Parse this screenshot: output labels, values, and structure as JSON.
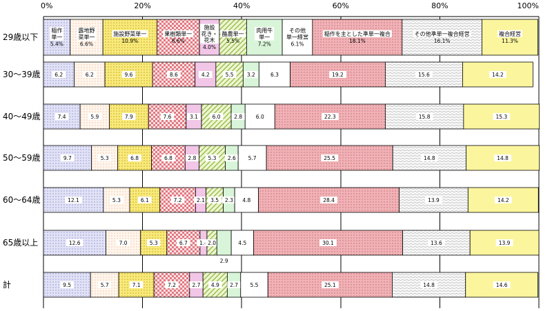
{
  "chart_data": {
    "type": "bar",
    "orientation": "horizontal",
    "stacked": true,
    "title": "",
    "xlabel": "",
    "ylabel": "",
    "xlim": [
      0,
      100
    ],
    "x_ticks": [
      "0%",
      "20%",
      "40%",
      "60%",
      "80%",
      "100%"
    ],
    "categories": [
      "29歳以下",
      "30～39歳",
      "40～49歳",
      "50～59歳",
      "60～64歳",
      "65歳以上",
      "計"
    ],
    "legend_placement": "inside-first-row",
    "series": [
      {
        "name": "稲作単一",
        "label_lines": [
          "稲作",
          "単一"
        ],
        "color": "#dcdcf4",
        "pattern": "dots-purple",
        "values": [
          5.4,
          6.2,
          7.4,
          9.7,
          12.1,
          12.6,
          9.5
        ]
      },
      {
        "name": "露地野菜単一",
        "label_lines": [
          "露地野",
          "菜単一"
        ],
        "color": "#fff4ec",
        "pattern": "dots-orange",
        "values": [
          6.6,
          6.2,
          5.9,
          5.3,
          5.3,
          7.0,
          5.7
        ]
      },
      {
        "name": "施設野菜単一",
        "label_lines": [
          "施設野菜単一"
        ],
        "color": "#f7ec9a",
        "pattern": "dots-yellow",
        "values": [
          10.9,
          9.6,
          7.9,
          6.8,
          6.1,
          5.3,
          7.1
        ]
      },
      {
        "name": "果樹類単一",
        "label_lines": [
          "果樹類単一"
        ],
        "color": "#f3c4c8",
        "pattern": "check-red",
        "values": [
          8.6,
          8.6,
          7.6,
          6.8,
          7.2,
          6.7,
          7.2
        ]
      },
      {
        "name": "施設花き・花木",
        "label_lines": [
          "施設",
          "花き・",
          "花木"
        ],
        "color": "#f2c6e6",
        "pattern": "plain-pink",
        "values": [
          4.0,
          4.2,
          3.1,
          2.8,
          2.1,
          1.4,
          2.7
        ]
      },
      {
        "name": "酪農単一",
        "label_lines": [
          "酪農単一"
        ],
        "color": "#e4f0c0",
        "pattern": "diag-green",
        "values": [
          5.5,
          5.5,
          6.0,
          5.3,
          3.5,
          2.0,
          4.9
        ]
      },
      {
        "name": "肉用牛単一",
        "label_lines": [
          "肉用牛",
          "単一"
        ],
        "color": "#d8f4d8",
        "pattern": "plain-green",
        "values": [
          7.2,
          3.2,
          2.8,
          2.6,
          2.3,
          2.9,
          2.7
        ]
      },
      {
        "name": "その他単一経営",
        "label_lines": [
          "その他",
          "単一経営"
        ],
        "color": "#ffffff",
        "pattern": "none",
        "values": [
          6.1,
          6.3,
          6.0,
          5.7,
          4.8,
          4.5,
          5.5
        ]
      },
      {
        "name": "稲作を主とした準単一複合",
        "label_lines": [
          "稲作を主とした準単一複合"
        ],
        "color": "#ecaeb2",
        "pattern": "dots-red",
        "values": [
          18.1,
          19.2,
          22.3,
          25.5,
          28.4,
          30.1,
          25.1
        ]
      },
      {
        "name": "その他準単一複合経営",
        "label_lines": [
          "その他準単一複合経営"
        ],
        "color": "#f2f2f2",
        "pattern": "wave-gray",
        "values": [
          16.1,
          15.6,
          15.8,
          14.8,
          13.9,
          13.6,
          14.8
        ]
      },
      {
        "name": "複合経営",
        "label_lines": [
          "複合経営"
        ],
        "color": "#fbf59c",
        "pattern": "plain-yellow",
        "values": [
          11.3,
          14.2,
          15.3,
          14.8,
          14.2,
          13.9,
          14.6
        ]
      }
    ],
    "value_labels": [
      [
        "5.4%",
        "6.6%",
        "10.9%",
        "8.6%",
        "4.0%",
        "5.5%",
        "7.2%",
        "6.1%",
        "18.1%",
        "16.1%",
        "11.3%"
      ],
      [
        "6.2",
        "6.2",
        "9.6",
        "8.6",
        "4.2",
        "5.5",
        "3.2",
        "6.3",
        "19.2",
        "15.6",
        "14.2"
      ],
      [
        "7.4",
        "5.9",
        "7.9",
        "7.6",
        "3.1",
        "6.0",
        "2.8",
        "6.0",
        "22.3",
        "15.8",
        "15.3"
      ],
      [
        "9.7",
        "5.3",
        "6.8",
        "6.8",
        "2.8",
        "5.3",
        "2.6",
        "5.7",
        "25.5",
        "14.8",
        "14.8"
      ],
      [
        "12.1",
        "5.3",
        "6.1",
        "7.2",
        "2.1",
        "3.5",
        "2.3",
        "4.8",
        "28.4",
        "13.9",
        "14.2"
      ],
      [
        "12.6",
        "7.0",
        "5.3",
        "6.7",
        "1.4",
        "2.0",
        "2.9",
        "4.5",
        "30.1",
        "13.6",
        "13.9"
      ],
      [
        "9.5",
        "5.7",
        "7.1",
        "7.2",
        "2.7",
        "4.9",
        "2.7",
        "5.5",
        "25.1",
        "14.8",
        "14.6"
      ]
    ]
  }
}
